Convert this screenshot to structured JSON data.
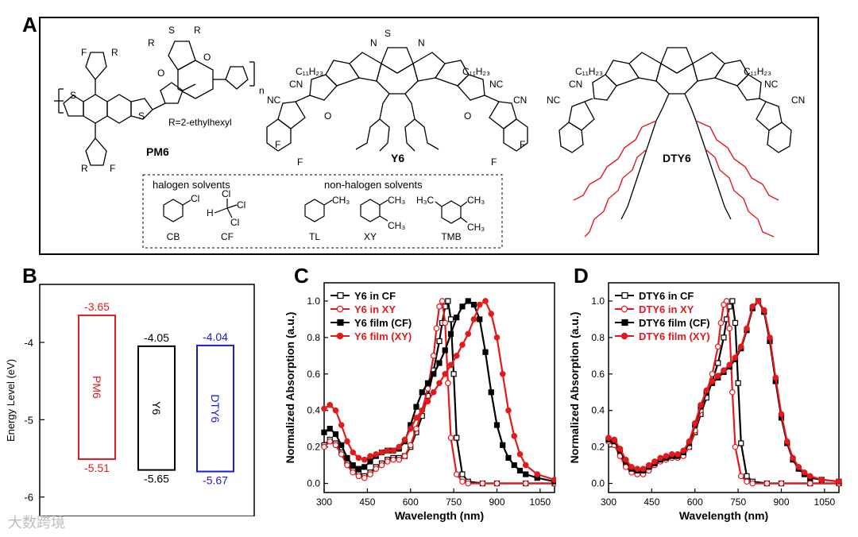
{
  "panel_a": {
    "letter": "A",
    "molecules": {
      "pm6": {
        "name": "PM6",
        "R_label": "R",
        "F_label": "F",
        "S_label": "S",
        "O_label": "O",
        "n_label": "n",
        "r_def": "R=2-ethylhexyl"
      },
      "y6": {
        "name": "Y6",
        "alkyl": "C₁₁H₂₃",
        "cn": "CN",
        "nc": "NC",
        "n_atom": "N",
        "s_atom": "S",
        "f_atom": "F",
        "o_atom": "O"
      },
      "dty6": {
        "name": "DTY6",
        "alkyl": "C₁₁H₂₃",
        "cn": "CN",
        "nc": "NC"
      }
    },
    "solvents": {
      "halogen_title": "halogen solvents",
      "nonhalogen_title": "non-halogen solvents",
      "items": [
        {
          "abbr": "CB",
          "kind": "halogen"
        },
        {
          "abbr": "CF",
          "kind": "halogen"
        },
        {
          "abbr": "TL",
          "kind": "non-halogen"
        },
        {
          "abbr": "XY",
          "kind": "non-halogen"
        },
        {
          "abbr": "TMB",
          "kind": "non-halogen"
        }
      ],
      "cl": "Cl",
      "h": "H",
      "ch3": "CH₃",
      "h3c": "H₃C"
    }
  },
  "watermark": "大数跨境",
  "chart_data": [
    {
      "panel": "B",
      "type": "bar",
      "title": "",
      "xlabel": "",
      "ylabel": "Energy Level (eV)",
      "ylim": [
        -6.25,
        -3.25
      ],
      "yticks": [
        "-4",
        "-5",
        "-6"
      ],
      "ytick_values": [
        -4,
        -5,
        -6
      ],
      "materials": [
        {
          "name": "PM6",
          "lumo": -3.65,
          "homo": -5.51,
          "lumo_label": "-3.65",
          "homo_label": "-5.51",
          "color": "#e31a1c"
        },
        {
          "name": "Y6",
          "lumo": -4.05,
          "homo": -5.65,
          "lumo_label": "-4.05",
          "homo_label": "-5.65",
          "color": "#000000"
        },
        {
          "name": "DTY6",
          "lumo": -4.04,
          "homo": -5.67,
          "lumo_label": "-4.04",
          "homo_label": "-5.67",
          "color": "#1a1adb"
        }
      ]
    },
    {
      "panel": "C",
      "type": "line",
      "title": "",
      "xlabel": "Wavelength (nm)",
      "ylabel": "Normalized Absorption (a.u.)",
      "xlim": [
        300,
        1100
      ],
      "ylim": [
        -0.05,
        1.1
      ],
      "xticks": [
        "300",
        "450",
        "600",
        "750",
        "900",
        "1050"
      ],
      "xtick_values": [
        300,
        450,
        600,
        750,
        900,
        1050
      ],
      "yticks": [
        "0.0",
        "0.2",
        "0.4",
        "0.6",
        "0.8",
        "1.0"
      ],
      "ytick_values": [
        0,
        0.2,
        0.4,
        0.6,
        0.8,
        1.0
      ],
      "legend_position": "top-left",
      "series": [
        {
          "name": "Y6 in CF",
          "color": "#000000",
          "marker": "square-open",
          "x": [
            300,
            320,
            340,
            360,
            380,
            400,
            420,
            440,
            460,
            480,
            500,
            520,
            540,
            560,
            580,
            600,
            620,
            640,
            660,
            680,
            700,
            710,
            720,
            730,
            740,
            750,
            760,
            780,
            800,
            850,
            900,
            1000,
            1100
          ],
          "y": [
            0.21,
            0.24,
            0.22,
            0.17,
            0.11,
            0.07,
            0.05,
            0.04,
            0.06,
            0.09,
            0.11,
            0.13,
            0.14,
            0.14,
            0.15,
            0.2,
            0.28,
            0.37,
            0.48,
            0.62,
            0.78,
            0.88,
            0.97,
            1.0,
            0.9,
            0.6,
            0.25,
            0.05,
            0.01,
            0.0,
            0.0,
            0.0,
            0.0
          ]
        },
        {
          "name": "Y6 in XY",
          "color": "#e31a1c",
          "marker": "circle-open",
          "x": [
            300,
            320,
            340,
            360,
            380,
            400,
            420,
            440,
            460,
            480,
            500,
            520,
            540,
            560,
            580,
            600,
            620,
            640,
            660,
            680,
            690,
            700,
            710,
            720,
            730,
            740,
            760,
            780,
            800,
            850,
            900,
            1000,
            1100
          ],
          "y": [
            0.2,
            0.23,
            0.21,
            0.16,
            0.1,
            0.06,
            0.04,
            0.03,
            0.05,
            0.08,
            0.1,
            0.12,
            0.13,
            0.13,
            0.15,
            0.21,
            0.3,
            0.4,
            0.52,
            0.7,
            0.85,
            0.97,
            1.0,
            0.88,
            0.55,
            0.25,
            0.05,
            0.01,
            0.0,
            0.0,
            0.0,
            0.0,
            0.0
          ]
        },
        {
          "name": "Y6 film (CF)",
          "color": "#000000",
          "marker": "square-filled",
          "x": [
            300,
            320,
            340,
            360,
            380,
            400,
            420,
            440,
            460,
            480,
            500,
            520,
            540,
            560,
            580,
            600,
            620,
            640,
            660,
            680,
            700,
            720,
            740,
            760,
            780,
            800,
            820,
            840,
            860,
            880,
            900,
            920,
            940,
            960,
            980,
            1000,
            1040,
            1100
          ],
          "y": [
            0.28,
            0.3,
            0.27,
            0.21,
            0.14,
            0.1,
            0.08,
            0.09,
            0.12,
            0.15,
            0.17,
            0.18,
            0.18,
            0.19,
            0.23,
            0.32,
            0.42,
            0.5,
            0.55,
            0.6,
            0.66,
            0.73,
            0.82,
            0.91,
            0.97,
            1.0,
            0.98,
            0.9,
            0.72,
            0.5,
            0.32,
            0.21,
            0.14,
            0.1,
            0.07,
            0.05,
            0.03,
            0.01
          ]
        },
        {
          "name": "Y6 film (XY)",
          "color": "#e31a1c",
          "marker": "circle-filled",
          "x": [
            300,
            320,
            340,
            360,
            380,
            400,
            420,
            440,
            460,
            480,
            500,
            520,
            540,
            560,
            580,
            600,
            620,
            640,
            660,
            680,
            700,
            720,
            740,
            760,
            780,
            800,
            820,
            840,
            860,
            880,
            900,
            920,
            940,
            960,
            980,
            1000,
            1040,
            1100
          ],
          "y": [
            0.41,
            0.43,
            0.4,
            0.32,
            0.23,
            0.17,
            0.14,
            0.13,
            0.15,
            0.16,
            0.17,
            0.18,
            0.18,
            0.2,
            0.24,
            0.3,
            0.36,
            0.4,
            0.45,
            0.5,
            0.55,
            0.6,
            0.65,
            0.7,
            0.76,
            0.82,
            0.9,
            0.98,
            1.0,
            0.93,
            0.8,
            0.6,
            0.4,
            0.26,
            0.16,
            0.1,
            0.05,
            0.02
          ]
        }
      ]
    },
    {
      "panel": "D",
      "type": "line",
      "title": "",
      "xlabel": "Wavelength (nm)",
      "ylabel": "Normalized Absorption (a.u.)",
      "xlim": [
        300,
        1100
      ],
      "ylim": [
        -0.05,
        1.1
      ],
      "xticks": [
        "300",
        "450",
        "600",
        "750",
        "900",
        "1050"
      ],
      "xtick_values": [
        300,
        450,
        600,
        750,
        900,
        1050
      ],
      "yticks": [
        "0.0",
        "0.2",
        "0.4",
        "0.6",
        "0.8",
        "1.0"
      ],
      "ytick_values": [
        0,
        0.2,
        0.4,
        0.6,
        0.8,
        1.0
      ],
      "legend_position": "top-left",
      "series": [
        {
          "name": "DTY6 in CF",
          "color": "#000000",
          "marker": "square-open",
          "x": [
            300,
            320,
            340,
            360,
            380,
            400,
            420,
            440,
            460,
            480,
            500,
            520,
            540,
            560,
            580,
            600,
            620,
            640,
            660,
            680,
            700,
            710,
            720,
            730,
            740,
            750,
            760,
            780,
            800,
            850,
            900,
            1000,
            1100
          ],
          "y": [
            0.24,
            0.22,
            0.16,
            0.1,
            0.07,
            0.06,
            0.06,
            0.08,
            0.11,
            0.13,
            0.14,
            0.15,
            0.15,
            0.16,
            0.2,
            0.28,
            0.38,
            0.47,
            0.56,
            0.66,
            0.8,
            0.9,
            0.97,
            1.0,
            0.88,
            0.55,
            0.22,
            0.04,
            0.01,
            0.0,
            0.0,
            0.0,
            0.0
          ]
        },
        {
          "name": "DTY6 in XY",
          "color": "#e31a1c",
          "marker": "circle-open",
          "x": [
            300,
            320,
            340,
            360,
            380,
            400,
            420,
            440,
            460,
            480,
            500,
            520,
            540,
            560,
            580,
            600,
            620,
            640,
            660,
            680,
            690,
            700,
            710,
            720,
            730,
            740,
            760,
            780,
            800,
            850,
            900,
            1000,
            1100
          ],
          "y": [
            0.23,
            0.21,
            0.15,
            0.09,
            0.06,
            0.05,
            0.05,
            0.07,
            0.1,
            0.12,
            0.13,
            0.14,
            0.14,
            0.15,
            0.2,
            0.29,
            0.4,
            0.5,
            0.6,
            0.75,
            0.88,
            0.98,
            1.0,
            0.85,
            0.5,
            0.2,
            0.04,
            0.01,
            0.0,
            0.0,
            0.0,
            0.0,
            0.0
          ]
        },
        {
          "name": "DTY6 film (CF)",
          "color": "#000000",
          "marker": "square-filled",
          "x": [
            300,
            320,
            340,
            360,
            380,
            400,
            420,
            440,
            460,
            480,
            500,
            520,
            540,
            560,
            580,
            600,
            620,
            640,
            660,
            680,
            700,
            720,
            740,
            760,
            780,
            800,
            820,
            840,
            860,
            880,
            900,
            920,
            940,
            960,
            980,
            1000,
            1040,
            1100
          ],
          "y": [
            0.24,
            0.23,
            0.18,
            0.12,
            0.08,
            0.07,
            0.07,
            0.09,
            0.11,
            0.13,
            0.14,
            0.15,
            0.15,
            0.17,
            0.22,
            0.32,
            0.42,
            0.5,
            0.55,
            0.58,
            0.61,
            0.64,
            0.68,
            0.74,
            0.84,
            0.96,
            1.0,
            0.94,
            0.78,
            0.56,
            0.36,
            0.22,
            0.13,
            0.08,
            0.05,
            0.03,
            0.02,
            0.01
          ]
        },
        {
          "name": "DTY6 film (XY)",
          "color": "#e31a1c",
          "marker": "circle-filled",
          "x": [
            300,
            320,
            340,
            360,
            380,
            400,
            420,
            440,
            460,
            480,
            500,
            520,
            540,
            560,
            580,
            600,
            620,
            640,
            660,
            680,
            700,
            720,
            740,
            760,
            780,
            800,
            820,
            840,
            860,
            880,
            900,
            920,
            940,
            960,
            980,
            1000,
            1040,
            1100
          ],
          "y": [
            0.25,
            0.24,
            0.19,
            0.13,
            0.09,
            0.08,
            0.08,
            0.1,
            0.12,
            0.14,
            0.15,
            0.16,
            0.16,
            0.18,
            0.23,
            0.33,
            0.43,
            0.51,
            0.56,
            0.59,
            0.62,
            0.65,
            0.69,
            0.75,
            0.85,
            0.97,
            1.0,
            0.95,
            0.8,
            0.58,
            0.38,
            0.23,
            0.14,
            0.09,
            0.06,
            0.04,
            0.02,
            0.01
          ]
        }
      ]
    }
  ]
}
